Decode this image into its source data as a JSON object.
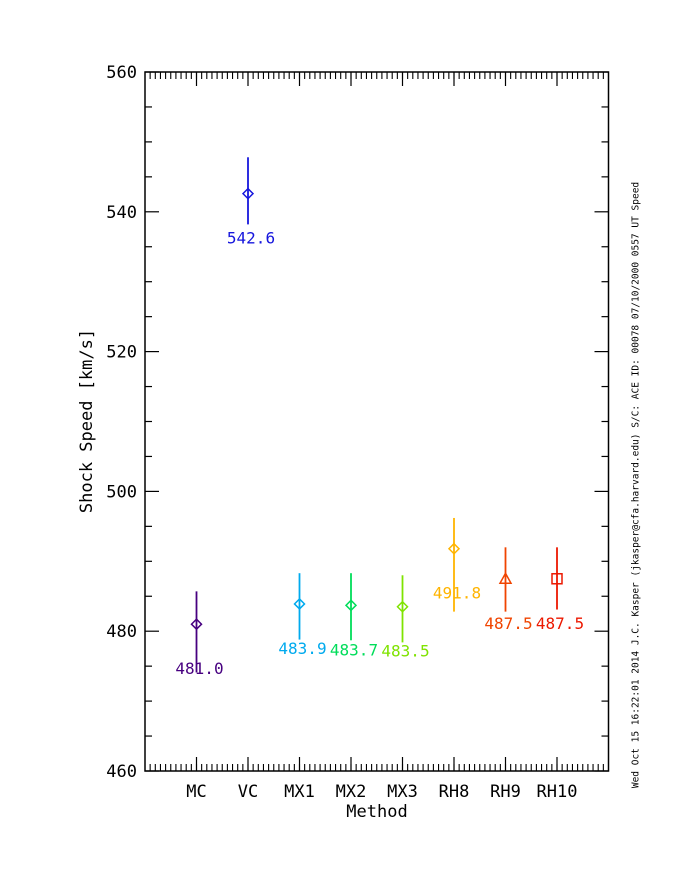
{
  "figure": {
    "background": "#ffffff",
    "axis_color": "#000000",
    "caption_right": "Wed Oct 15 16:22:01 2014  J.C. Kasper (jkasper@cfa.harvard.edu)  S/C: ACE ID: 00078 07/10/2000  0557 UT Speed"
  },
  "chart_data": {
    "type": "scatter",
    "title": "",
    "xlabel": "Method",
    "ylabel": "Shock Speed [km/s]",
    "ylim": [
      460,
      560
    ],
    "yticks": [
      460,
      480,
      500,
      520,
      540,
      560
    ],
    "y_minor_step": 5,
    "x_minor_per_interval": 10,
    "grid": false,
    "legend": "none",
    "categories": [
      "MC",
      "VC",
      "MX1",
      "MX2",
      "MX3",
      "RH8",
      "RH9",
      "RH10"
    ],
    "points": [
      {
        "category": "MC",
        "value": 481.0,
        "value_label": "481.0",
        "upper": 485.7,
        "lower": 474.1,
        "color": "#470080",
        "marker": "diamond"
      },
      {
        "category": "VC",
        "value": 542.6,
        "value_label": "542.6",
        "upper": 547.8,
        "lower": 538.2,
        "color": "#1616dd",
        "marker": "diamond"
      },
      {
        "category": "MX1",
        "value": 483.9,
        "value_label": "483.9",
        "upper": 488.3,
        "lower": 478.8,
        "color": "#00aaee",
        "marker": "diamond"
      },
      {
        "category": "MX2",
        "value": 483.7,
        "value_label": "483.7",
        "upper": 488.3,
        "lower": 478.7,
        "color": "#00dd5a",
        "marker": "diamond"
      },
      {
        "category": "MX3",
        "value": 483.5,
        "value_label": "483.5",
        "upper": 488.0,
        "lower": 478.4,
        "color": "#7fe300",
        "marker": "diamond"
      },
      {
        "category": "RH8",
        "value": 491.8,
        "value_label": "491.8",
        "upper": 496.2,
        "lower": 482.8,
        "color": "#ffb400",
        "marker": "diamond"
      },
      {
        "category": "RH9",
        "value": 487.5,
        "value_label": "487.5",
        "upper": 492.0,
        "lower": 482.8,
        "color": "#f04400",
        "marker": "triangle"
      },
      {
        "category": "RH10",
        "value": 487.5,
        "value_label": "487.5",
        "upper": 492.0,
        "lower": 483.1,
        "color": "#ec1800",
        "marker": "square"
      }
    ]
  }
}
